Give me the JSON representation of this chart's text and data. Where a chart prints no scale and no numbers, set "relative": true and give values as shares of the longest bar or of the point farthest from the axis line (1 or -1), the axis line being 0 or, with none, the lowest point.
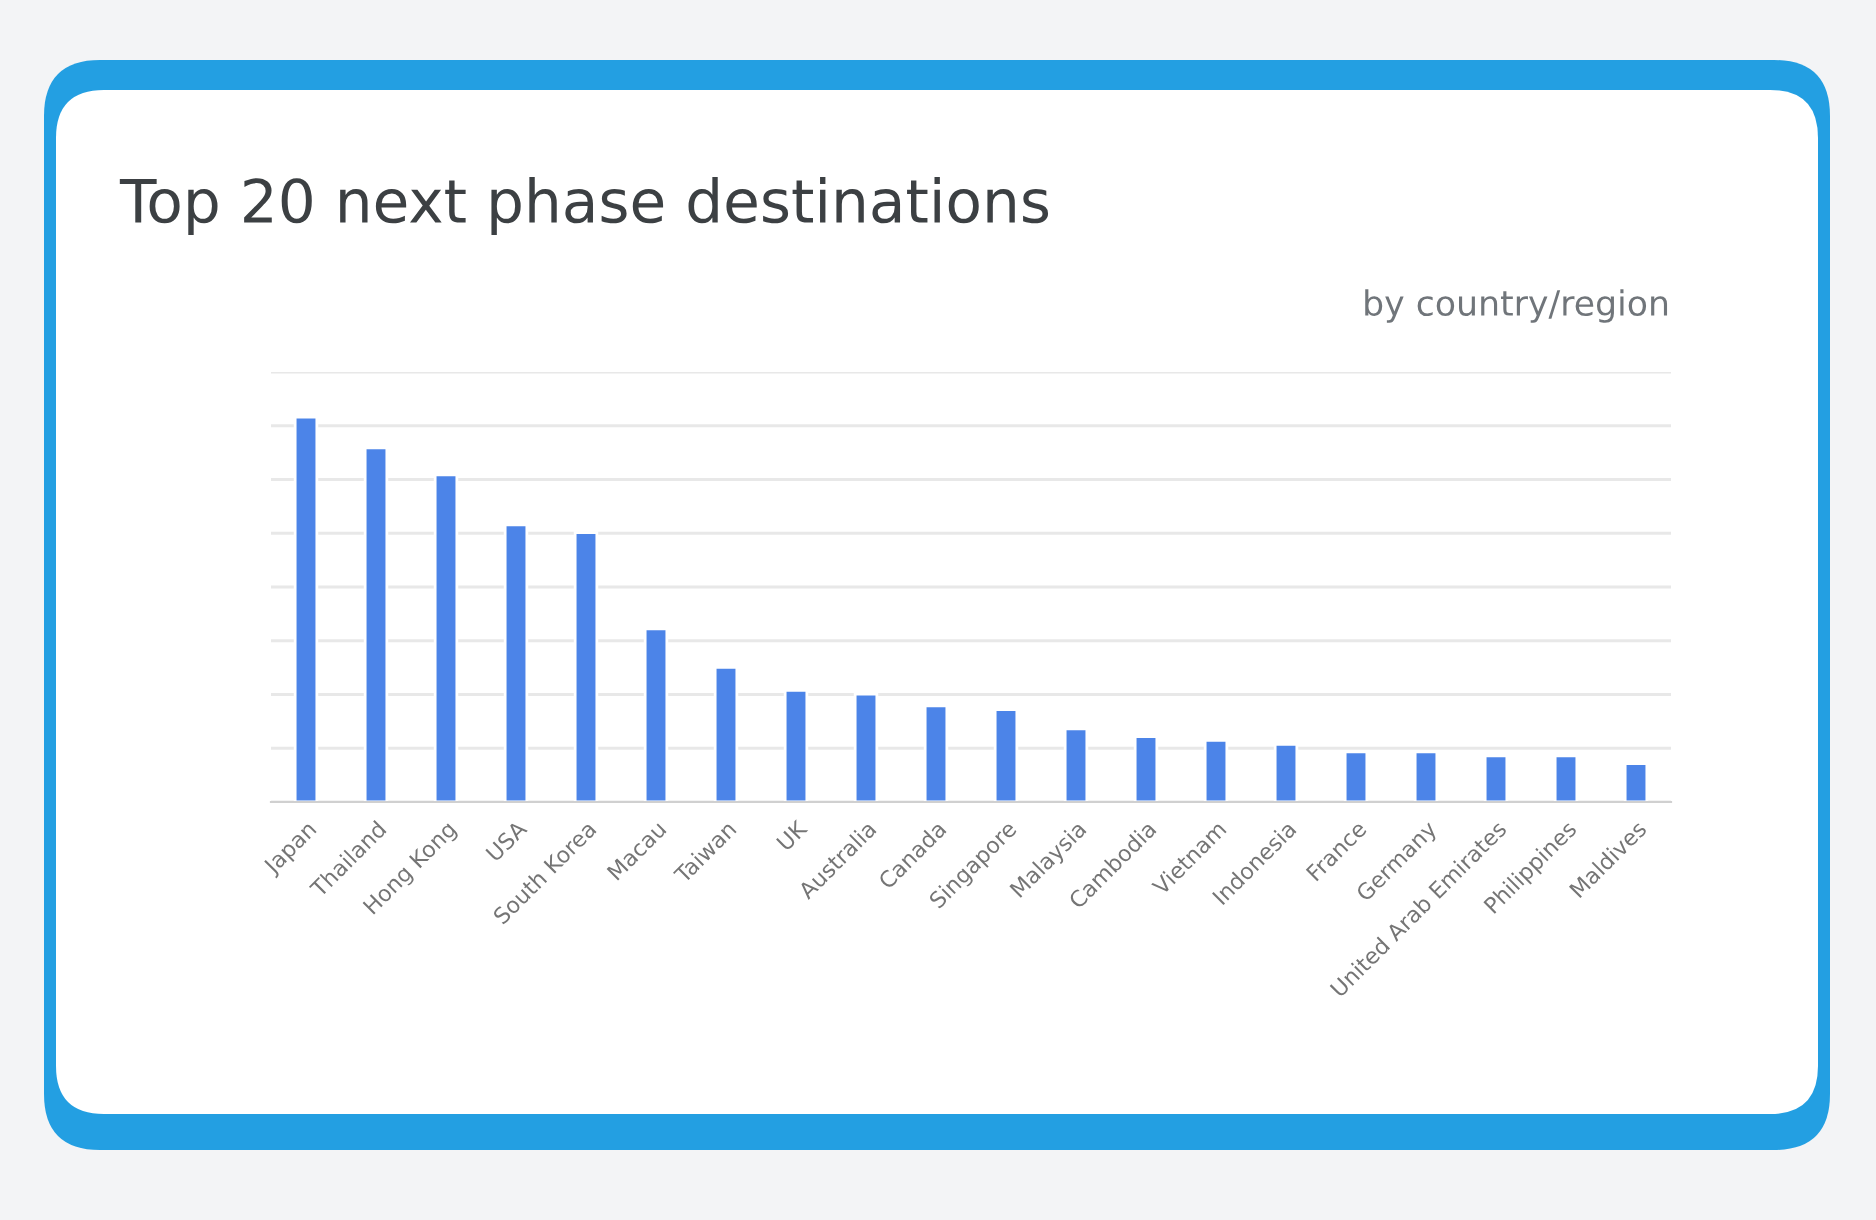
{
  "chart_data": {
    "type": "bar",
    "title": "Top 20 next phase destinations",
    "subtitle": "by country/region",
    "categories": [
      "Japan",
      "Thailand",
      "Hong Kong",
      "USA",
      "South Korea",
      "Macau",
      "Taiwan",
      "UK",
      "Australia",
      "Canada",
      "Singapore",
      "Malaysia",
      "Cambodia",
      "Vietnam",
      "Indonesia",
      "France",
      "Germany",
      "United Arab Emirates",
      "Philippines",
      "Maldives"
    ],
    "values": [
      1,
      0.92,
      0.85,
      0.72,
      0.7,
      0.45,
      0.35,
      0.29,
      0.28,
      0.25,
      0.24,
      0.19,
      0.17,
      0.16,
      0.15,
      0.13,
      0.13,
      0.12,
      0.12,
      0.1
    ],
    "color": "#4c84e8",
    "relative": true,
    "grid": "y"
  }
}
